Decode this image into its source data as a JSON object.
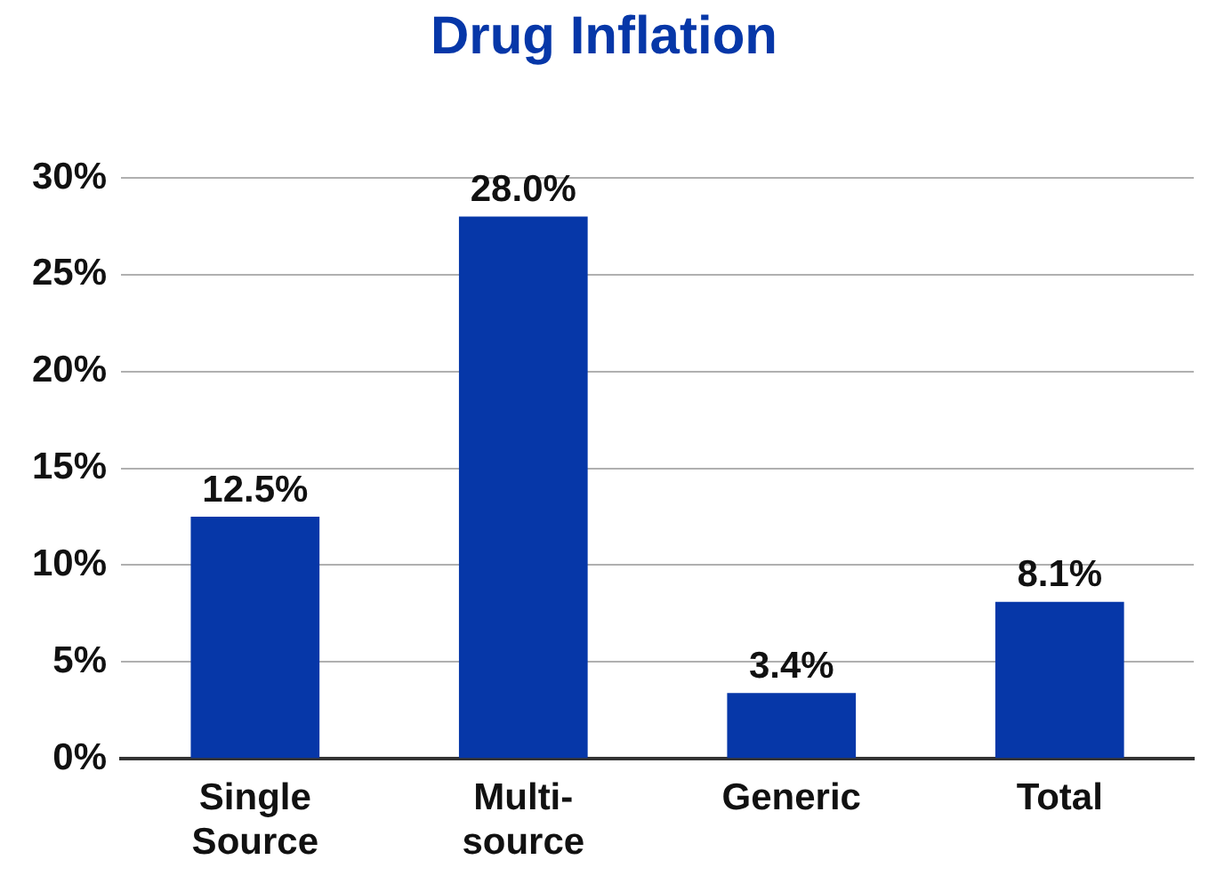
{
  "chart_data": {
    "type": "bar",
    "title": "Drug Inflation",
    "categories": [
      "Single Source",
      "Multi-source",
      "Generic",
      "Total"
    ],
    "values": [
      12.5,
      28.0,
      3.4,
      8.1
    ],
    "color": "#0637a8",
    "value_labels": [
      "12.5%",
      "28.0%",
      "3.4%",
      "8.1%"
    ],
    "ylim": [
      0,
      30
    ],
    "yticks": [
      {
        "value": 0,
        "label": "0%"
      },
      {
        "value": 5,
        "label": "5%"
      },
      {
        "value": 10,
        "label": "10%"
      },
      {
        "value": 15,
        "label": "15%"
      },
      {
        "value": 20,
        "label": "20%"
      },
      {
        "value": 25,
        "label": "25%"
      },
      {
        "value": 30,
        "label": "30%"
      }
    ],
    "grid": "y",
    "legend": false
  }
}
